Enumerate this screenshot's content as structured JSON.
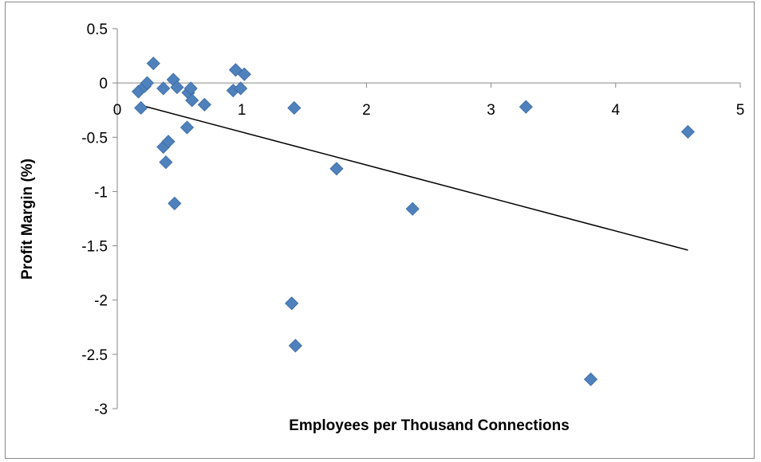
{
  "chart_data": {
    "type": "scatter",
    "title": "",
    "xlabel": "Employees per Thousand Connections",
    "ylabel": "Profit Margin (%)",
    "xlim": [
      0,
      5
    ],
    "ylim": [
      -3,
      0.5
    ],
    "x_ticks": [
      0,
      1,
      2,
      3,
      4,
      5
    ],
    "y_ticks": [
      0.5,
      0,
      -0.5,
      -1,
      -1.5,
      -2,
      -2.5,
      -3
    ],
    "grid": false,
    "legend": "none",
    "marker_color": "#4F81BD",
    "trendline_color": "#000000",
    "series": [
      {
        "points": [
          [
            0.17,
            -0.08
          ],
          [
            0.19,
            -0.23
          ],
          [
            0.22,
            -0.03
          ],
          [
            0.24,
            0.0
          ],
          [
            0.29,
            0.18
          ],
          [
            0.37,
            -0.05
          ],
          [
            0.37,
            -0.59
          ],
          [
            0.39,
            -0.73
          ],
          [
            0.41,
            -0.54
          ],
          [
            0.45,
            0.03
          ],
          [
            0.46,
            -1.11
          ],
          [
            0.48,
            -0.04
          ],
          [
            0.56,
            -0.41
          ],
          [
            0.57,
            -0.09
          ],
          [
            0.59,
            -0.05
          ],
          [
            0.6,
            -0.16
          ],
          [
            0.7,
            -0.2
          ],
          [
            0.93,
            -0.07
          ],
          [
            0.95,
            0.12
          ],
          [
            0.99,
            -0.05
          ],
          [
            1.02,
            0.08
          ],
          [
            1.4,
            -2.03
          ],
          [
            1.42,
            -0.23
          ],
          [
            1.43,
            -2.42
          ],
          [
            1.76,
            -0.79
          ],
          [
            2.37,
            -1.16
          ],
          [
            3.28,
            -0.22
          ],
          [
            3.8,
            -2.73
          ],
          [
            4.58,
            -0.45
          ]
        ]
      }
    ],
    "trendline": {
      "x": [
        0.17,
        4.58
      ],
      "y": [
        -0.2,
        -1.54
      ]
    }
  }
}
